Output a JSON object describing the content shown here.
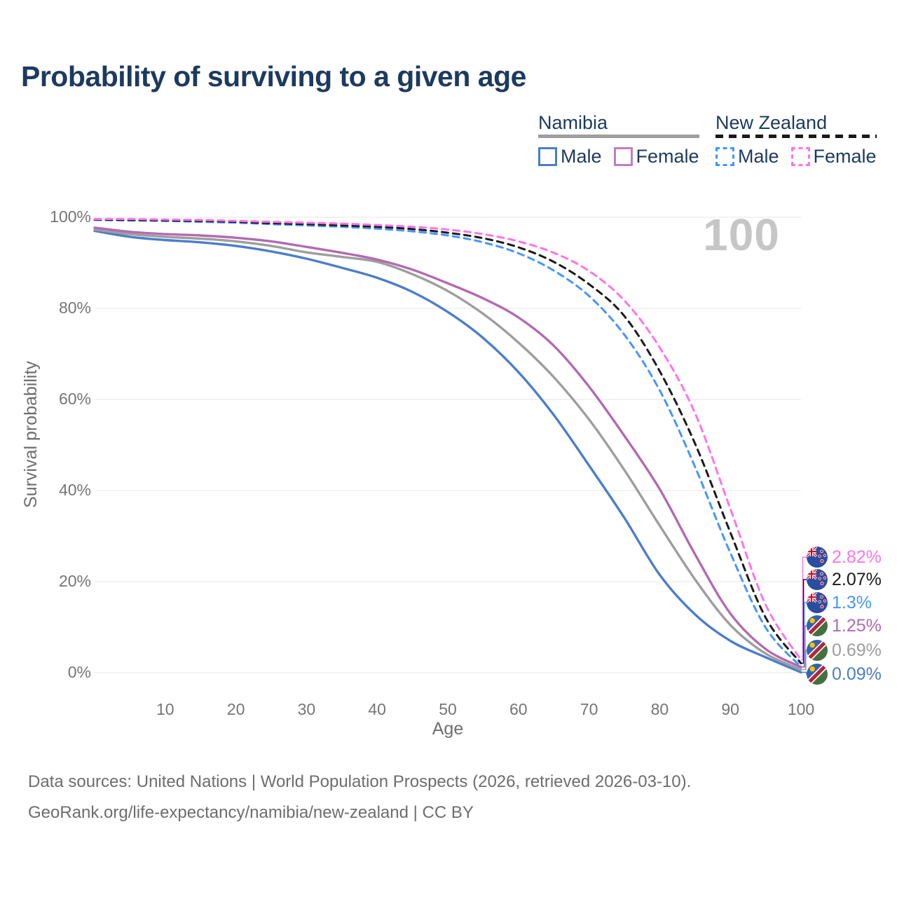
{
  "title": "Probability of surviving to a given age",
  "legend": {
    "groups": [
      {
        "country": "Namibia",
        "line_style": "solid",
        "line_color": "#9e9e9e",
        "items": [
          {
            "label": "Male",
            "box_color": "#4b7ec9",
            "box_style": "solid"
          },
          {
            "label": "Female",
            "box_color": "#c07ec0",
            "box_style": "solid"
          }
        ]
      },
      {
        "country": "New Zealand",
        "line_style": "dashed",
        "line_color": "#1a1a1a",
        "items": [
          {
            "label": "Male",
            "box_color": "#4695fd",
            "box_style": "dashed"
          },
          {
            "label": "Female",
            "box_color": "#ff74e8",
            "box_style": "dashed"
          }
        ]
      }
    ]
  },
  "chart_data": {
    "type": "line",
    "title": "Probability of surviving to a given age",
    "xlabel": "Age",
    "ylabel": "Survival probability",
    "xlim": [
      0,
      100
    ],
    "ylim": [
      0,
      100
    ],
    "grid": "horizontal",
    "legend_position": "top-right",
    "hover_age_indicator": "100",
    "x_ticks": [
      10,
      20,
      30,
      40,
      50,
      60,
      70,
      80,
      90,
      100
    ],
    "y_tick_labels": [
      "0%",
      "20%",
      "40%",
      "60%",
      "80%",
      "100%"
    ],
    "x": [
      0,
      5,
      10,
      15,
      20,
      25,
      30,
      35,
      40,
      45,
      50,
      55,
      60,
      65,
      70,
      75,
      80,
      85,
      90,
      95,
      100
    ],
    "series": [
      {
        "id": "namibia-male",
        "name": "Namibia Male",
        "country": "Namibia",
        "sex": "Male",
        "style": "solid",
        "color": "#4b7ec9",
        "flag": "namibia",
        "end_label": "0.09%",
        "values": [
          97.0,
          95.7,
          95.0,
          94.5,
          93.7,
          92.5,
          90.9,
          88.9,
          86.7,
          83.6,
          79.2,
          73.5,
          66.0,
          56.6,
          45.5,
          34.0,
          21.5,
          12.8,
          7.0,
          3.4,
          0.09
        ]
      },
      {
        "id": "namibia-total",
        "name": "Namibia",
        "country": "Namibia",
        "sex": "Both",
        "style": "solid",
        "color": "#9e9e9e",
        "flag": "namibia",
        "end_label": "0.69%",
        "values": [
          97.3,
          96.3,
          95.7,
          95.3,
          94.7,
          93.7,
          92.3,
          91.3,
          90.2,
          87.5,
          83.8,
          78.8,
          72.5,
          64.9,
          55.6,
          44.5,
          32.3,
          20.5,
          10.5,
          4.2,
          0.69
        ]
      },
      {
        "id": "namibia-female",
        "name": "Namibia Female",
        "country": "Namibia",
        "sex": "Female",
        "style": "solid",
        "color": "#b26ab2",
        "flag": "namibia",
        "end_label": "1.25%",
        "values": [
          97.7,
          96.8,
          96.3,
          96.0,
          95.5,
          94.7,
          93.5,
          92.2,
          90.7,
          88.5,
          85.5,
          82.2,
          78.0,
          71.8,
          62.8,
          52.0,
          40.3,
          26.0,
          13.0,
          5.2,
          1.25
        ]
      },
      {
        "id": "new-zealand-male",
        "name": "New Zealand Male",
        "country": "New Zealand",
        "sex": "Male",
        "style": "dashed",
        "color": "#4695fd",
        "flag": "new-zealand",
        "end_label": "1.3%",
        "values": [
          99.4,
          99.3,
          99.2,
          99.0,
          98.8,
          98.5,
          98.2,
          97.9,
          97.5,
          96.9,
          96.0,
          94.5,
          92.1,
          88.3,
          82.7,
          74.2,
          62.0,
          45.2,
          26.3,
          9.9,
          1.3
        ]
      },
      {
        "id": "new-zealand-total",
        "name": "New Zealand",
        "country": "New Zealand",
        "sex": "Both",
        "style": "dashed",
        "color": "#1a1a1a",
        "flag": "new-zealand",
        "end_label": "2.07%",
        "values": [
          99.5,
          99.4,
          99.3,
          99.2,
          99.0,
          98.7,
          98.5,
          98.2,
          97.9,
          97.4,
          96.6,
          95.4,
          93.4,
          90.2,
          85.3,
          78.3,
          66.2,
          50.3,
          30.8,
          12.1,
          2.07
        ]
      },
      {
        "id": "new-zealand-female",
        "name": "New Zealand Female",
        "country": "New Zealand",
        "sex": "Female",
        "style": "dashed",
        "color": "#ff74e8",
        "flag": "new-zealand",
        "end_label": "2.82%",
        "values": [
          99.6,
          99.6,
          99.5,
          99.4,
          99.2,
          99.0,
          98.8,
          98.6,
          98.3,
          97.9,
          97.3,
          96.3,
          94.7,
          92.2,
          88.2,
          81.7,
          71.4,
          57.0,
          36.0,
          14.9,
          2.82
        ]
      }
    ]
  },
  "footer": {
    "line1": "Data sources: United Nations | World Population Prospects (2026, retrieved 2026-03-10).",
    "line2": "GeoRank.org/life-expectancy/namibia/new-zealand | CC BY"
  }
}
